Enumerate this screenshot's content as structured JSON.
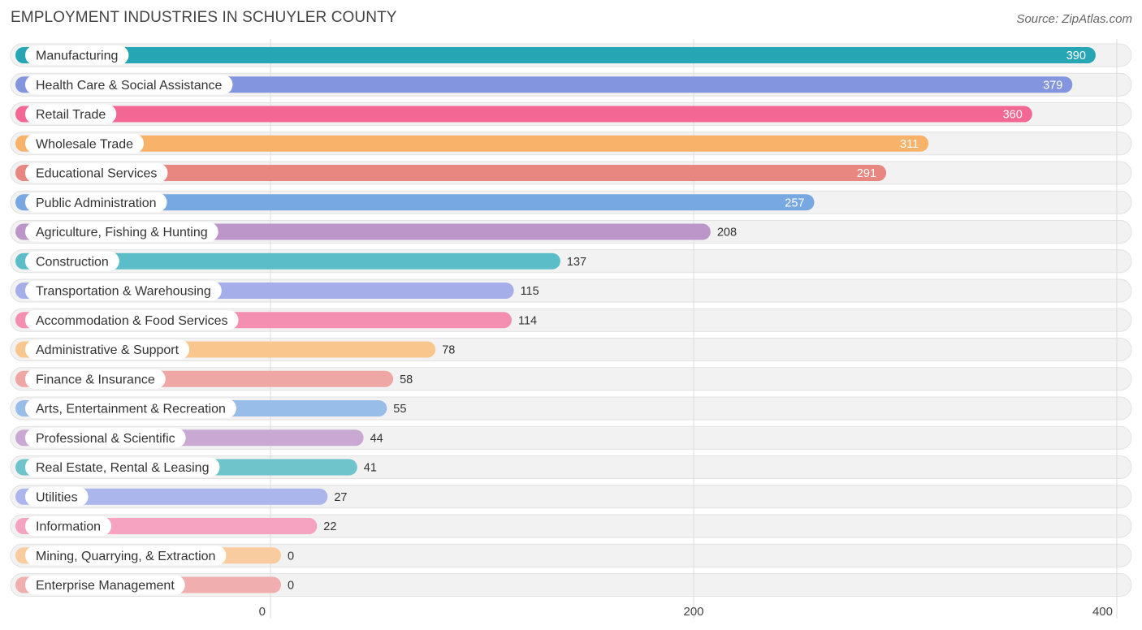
{
  "header": {
    "title": "EMPLOYMENT INDUSTRIES IN SCHUYLER COUNTY",
    "source": "Source: ZipAtlas.com"
  },
  "chart_data": {
    "type": "bar",
    "orientation": "horizontal",
    "title": "EMPLOYMENT INDUSTRIES IN SCHUYLER COUNTY",
    "xlabel": "",
    "ylabel": "",
    "xlim": [
      0,
      400
    ],
    "xticks": [
      0,
      200,
      400
    ],
    "grid": true,
    "categories": [
      "Manufacturing",
      "Health Care & Social Assistance",
      "Retail Trade",
      "Wholesale Trade",
      "Educational Services",
      "Public Administration",
      "Agriculture, Fishing & Hunting",
      "Construction",
      "Transportation & Warehousing",
      "Accommodation & Food Services",
      "Administrative & Support",
      "Finance & Insurance",
      "Arts, Entertainment & Recreation",
      "Professional & Scientific",
      "Real Estate, Rental & Leasing",
      "Utilities",
      "Information",
      "Mining, Quarrying, & Extraction",
      "Enterprise Management"
    ],
    "values": [
      390,
      379,
      360,
      311,
      291,
      257,
      208,
      137,
      115,
      114,
      78,
      58,
      55,
      44,
      41,
      27,
      22,
      0,
      0
    ],
    "colors": [
      "#26a6b5",
      "#8495e0",
      "#f26794",
      "#f9b26a",
      "#e8877f",
      "#78a8e2",
      "#bc96c8",
      "#5bbdc8",
      "#a5aee8",
      "#f48fb1",
      "#f9c68e",
      "#efa7a5",
      "#99bde9",
      "#c9a9d3",
      "#6fc4cb",
      "#abb6ec",
      "#f6a3c1",
      "#f9cc9f",
      "#f0aeae"
    ]
  }
}
